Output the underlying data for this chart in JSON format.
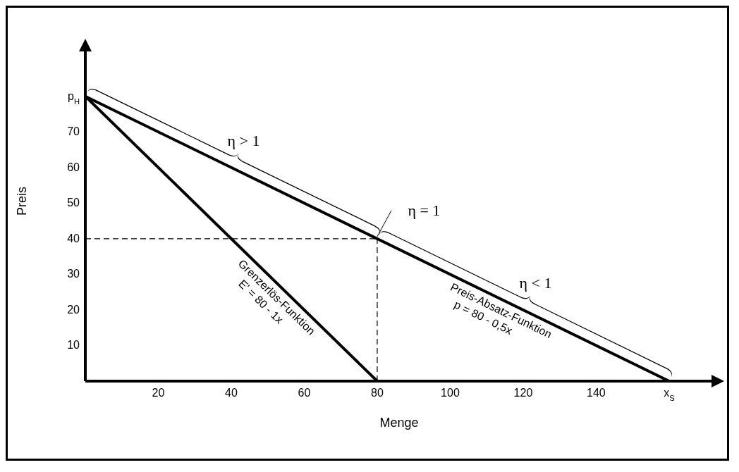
{
  "chart_data": {
    "type": "line",
    "xlabel": "Menge",
    "ylabel": "Preis",
    "marker": "none",
    "line_style": "solid",
    "xlim": [
      0,
      172
    ],
    "ylim": [
      0,
      93
    ],
    "xticks": [
      20,
      40,
      60,
      80,
      100,
      120,
      140,
      {
        "value": 160,
        "label": "x$_{S}$"
      }
    ],
    "yticks": [
      10,
      20,
      30,
      40,
      50,
      60,
      70,
      {
        "value": 80,
        "label": "p$_{H}$"
      }
    ],
    "series": [
      {
        "x": [
          0,
          160
        ],
        "values": [
          80,
          0
        ],
        "color": "#000000"
      },
      {
        "x": [
          0,
          80
        ],
        "values": [
          80,
          0
        ],
        "color": "#000000"
      },
      {
        "x": [
          0,
          80
        ],
        "values": [
          40,
          40
        ],
        "color": "#000000",
        "line_style": "dashed"
      },
      {
        "x": [
          80,
          80
        ],
        "values": [
          0,
          40
        ],
        "color": "#000000",
        "line_style": "dashed"
      }
    ],
    "annotations": [
      "η > 1",
      "η = 1",
      "η < 1",
      "Grenzerlös-Funktion",
      "E' = 80 - 1x",
      "Preis-Absatz-Funktion",
      "p = 80 - 0,5x"
    ]
  }
}
